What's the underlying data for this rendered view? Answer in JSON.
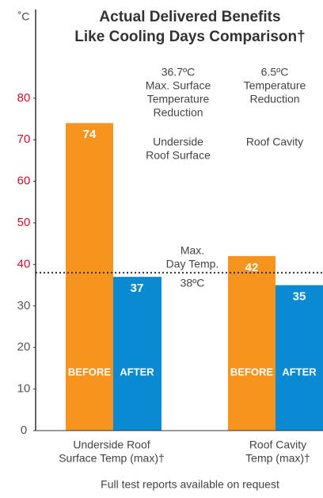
{
  "chart_data": {
    "type": "bar",
    "title": [
      "Actual Delivered Benefits",
      "Like Cooling Days Comparison†"
    ],
    "y_unit": "˚C",
    "categories": [
      [
        "Underside Roof",
        "Surface Temp (max)†"
      ],
      [
        "Roof Cavity",
        "Temp (max)†"
      ]
    ],
    "series": [
      {
        "name": "BEFORE",
        "color": "#f7941d",
        "values": [
          74,
          42
        ]
      },
      {
        "name": "AFTER",
        "color": "#0a8ad2",
        "values": [
          37,
          35
        ]
      }
    ],
    "ylim": [
      0,
      100
    ],
    "yticks": [
      0,
      10,
      20,
      30,
      40,
      50,
      60,
      70,
      80
    ],
    "ytick_colors": [
      "#555555",
      "#555555",
      "#555555",
      "#555555",
      "#c8102e",
      "#c8102e",
      "#c8102e",
      "#c8102e",
      "#c8102e"
    ],
    "reference_line": {
      "value": 38,
      "label": [
        "Max.",
        "Day Temp.",
        "38ºC"
      ]
    },
    "annotations": [
      {
        "lines": [
          "36.7ºC",
          "Max. Surface",
          "Temperature",
          "Reduction"
        ]
      },
      {
        "lines": [
          "Underside",
          "Roof Surface"
        ]
      },
      {
        "lines": [
          "6.5ºC",
          "Temperature",
          "Reduction"
        ]
      },
      {
        "lines": [
          "Roof Cavity"
        ]
      }
    ],
    "footnote": "Full test reports available on request"
  }
}
